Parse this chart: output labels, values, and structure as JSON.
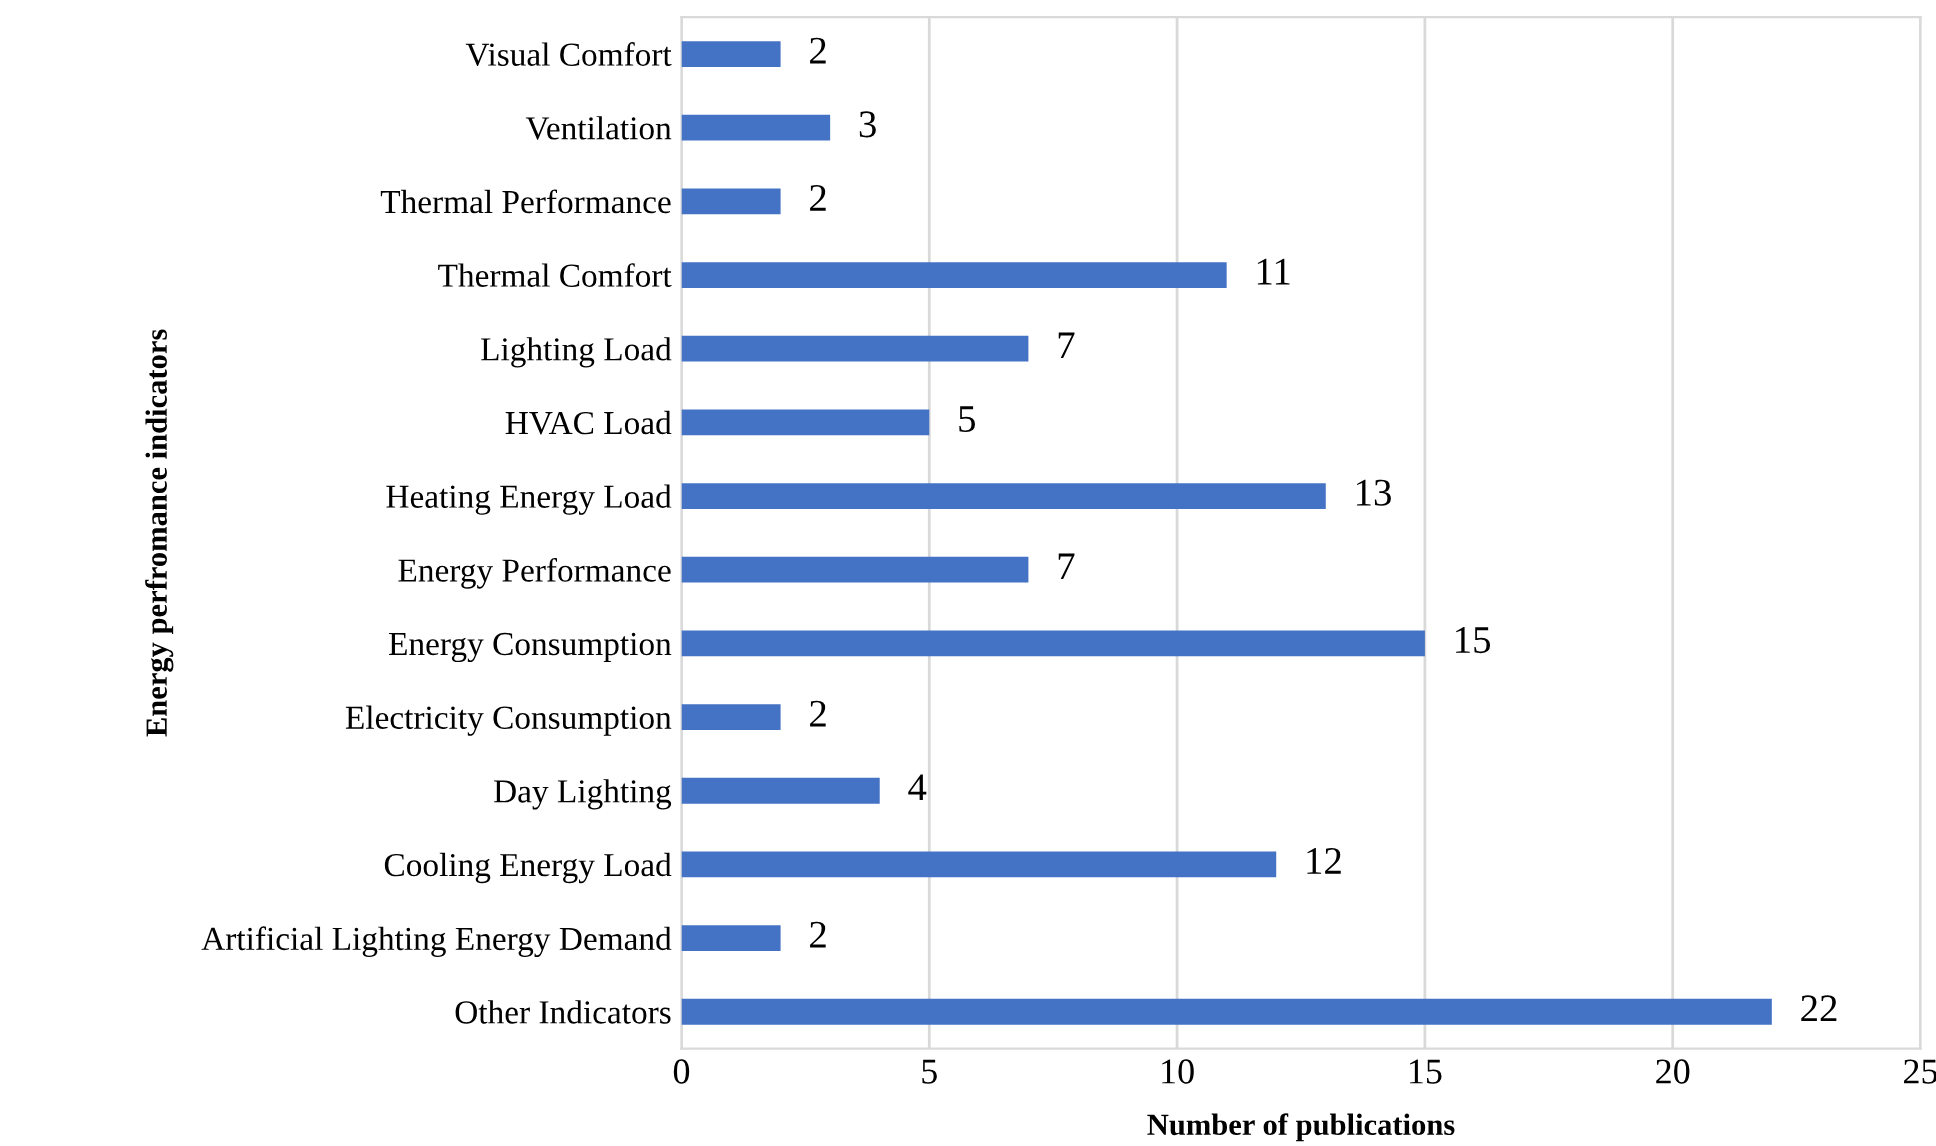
{
  "chart_data": {
    "type": "bar",
    "orientation": "horizontal",
    "xlabel": "Number of publications",
    "ylabel": "Energy perfromance indicators",
    "categories": [
      "Visual Comfort",
      "Ventilation",
      "Thermal Performance",
      "Thermal Comfort",
      "Lighting Load",
      "HVAC Load",
      "Heating Energy Load",
      "Energy Performance",
      "Energy Consumption",
      "Electricity Consumption",
      "Day Lighting",
      "Cooling Energy Load",
      "Artificial Lighting Energy Demand",
      "Other Indicators"
    ],
    "values": [
      2,
      3,
      2,
      11,
      7,
      5,
      13,
      7,
      15,
      2,
      4,
      12,
      2,
      22
    ],
    "color": "#4472c4",
    "xlim": [
      0,
      25
    ],
    "xticks": [
      0,
      5,
      10,
      15,
      20,
      25
    ],
    "grid": "x",
    "data_labels": true
  }
}
